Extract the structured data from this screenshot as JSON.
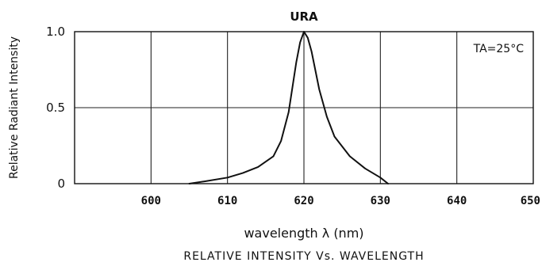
{
  "chart_data": {
    "type": "line",
    "title": "RELATIVE INTENSITY Vs. WAVELENGTH",
    "xlabel": "wavelength λ  (nm)",
    "ylabel": "Relative Radiant Intensity",
    "xlim": [
      590,
      650
    ],
    "ylim": [
      0,
      1.0
    ],
    "x_ticks": [
      600,
      610,
      620,
      630,
      640,
      650
    ],
    "y_ticks": [
      {
        "value": 0,
        "label": "0"
      },
      {
        "value": 0.5,
        "label": "0.5"
      },
      {
        "value": 1.0,
        "label": "1.0"
      }
    ],
    "grid": true,
    "series": [
      {
        "name": "URA",
        "x": [
          605,
          607,
          610,
          612,
          614,
          616,
          617,
          618,
          619,
          619.5,
          620,
          620.5,
          621,
          622,
          623,
          624,
          626,
          628,
          630,
          631
        ],
        "y": [
          0.0,
          0.015,
          0.04,
          0.07,
          0.11,
          0.18,
          0.28,
          0.47,
          0.8,
          0.93,
          1.0,
          0.96,
          0.87,
          0.62,
          0.44,
          0.31,
          0.18,
          0.1,
          0.04,
          0.0
        ]
      }
    ],
    "annotations": [
      {
        "text": "URA",
        "x": 620,
        "y": 1.0
      },
      {
        "text": "TA=25°C",
        "position": "top-right"
      }
    ]
  }
}
